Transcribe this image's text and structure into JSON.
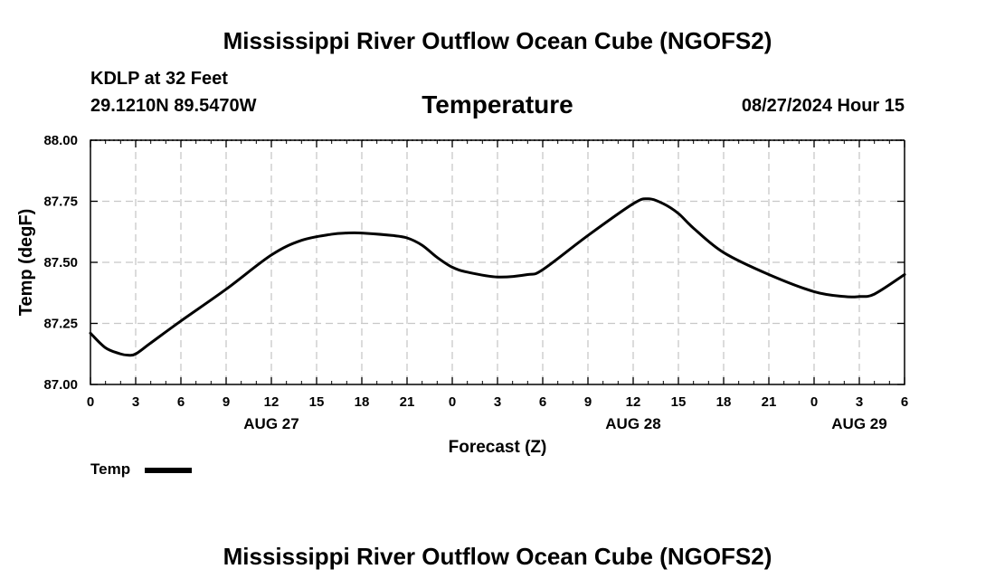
{
  "header": {
    "title": "Mississippi River Outflow Ocean Cube (NGOFS2)",
    "station": "KDLP at 32 Feet",
    "coords": "29.1210N  89.5470W",
    "variable": "Temperature",
    "datetime": "08/27/2024 Hour 15"
  },
  "footer": {
    "title": "Mississippi River Outflow Ocean Cube (NGOFS2)"
  },
  "legend": {
    "label": "Temp"
  },
  "colors": {
    "line": "#000000",
    "grid": "#c8c8c8"
  },
  "chart_data": {
    "type": "line",
    "title": "Temperature",
    "xlabel": "Forecast (Z)",
    "ylabel": "Temp (degF)",
    "xlim": [
      0,
      54
    ],
    "ylim": [
      87.0,
      88.0
    ],
    "x_ticks": [
      0,
      3,
      6,
      9,
      12,
      15,
      18,
      21,
      24,
      27,
      30,
      33,
      36,
      39,
      42,
      45,
      48,
      51,
      54
    ],
    "x_tick_labels": [
      "0",
      "3",
      "6",
      "9",
      "12",
      "15",
      "18",
      "21",
      "0",
      "3",
      "6",
      "9",
      "12",
      "15",
      "18",
      "21",
      "0",
      "3",
      "6"
    ],
    "date_labels": [
      {
        "x": 12,
        "label": "AUG 27"
      },
      {
        "x": 36,
        "label": "AUG 28"
      },
      {
        "x": 51,
        "label": "AUG 29"
      }
    ],
    "y_ticks": [
      87.0,
      87.25,
      87.5,
      87.75,
      88.0
    ],
    "y_tick_labels": [
      "87.00",
      "87.25",
      "87.50",
      "87.75",
      "88.00"
    ],
    "grid": true,
    "series": [
      {
        "name": "Temp",
        "x": [
          0,
          1,
          2,
          2.5,
          3,
          4,
          6,
          9,
          12,
          14,
          16,
          17,
          18,
          20,
          21,
          22,
          23,
          24,
          25,
          27,
          29,
          30,
          33,
          36,
          37,
          38,
          39,
          40,
          42,
          45,
          48,
          50,
          51,
          52,
          54
        ],
        "values": [
          87.21,
          87.15,
          87.125,
          87.12,
          87.125,
          87.17,
          87.26,
          87.39,
          87.53,
          87.59,
          87.615,
          87.62,
          87.62,
          87.61,
          87.6,
          87.57,
          87.52,
          87.48,
          87.46,
          87.44,
          87.45,
          87.47,
          87.61,
          87.74,
          87.76,
          87.74,
          87.7,
          87.64,
          87.54,
          87.45,
          87.38,
          87.36,
          87.36,
          87.37,
          87.45
        ]
      }
    ]
  }
}
